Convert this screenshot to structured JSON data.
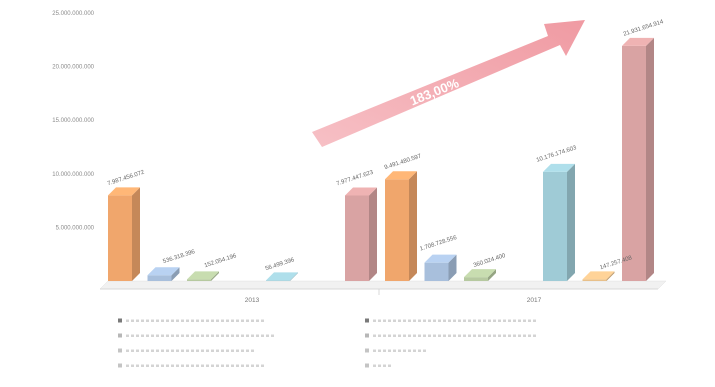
{
  "chart_data": {
    "type": "bar",
    "title": "",
    "xlabel": "",
    "ylabel": "",
    "ylim": [
      0,
      25000000000
    ],
    "yticks": [
      {
        "value": 5000000000,
        "label": "5.000.000.000"
      },
      {
        "value": 10000000000,
        "label": "10.000.000.000"
      },
      {
        "value": 15000000000,
        "label": "15.000.000.000"
      },
      {
        "value": 20000000000,
        "label": "20.000.000.000"
      },
      {
        "value": 25000000000,
        "label": "25.000.000.000"
      }
    ],
    "categories": [
      "2013",
      "2017"
    ],
    "grid": false,
    "legend_position": "bottom",
    "series": [
      {
        "name": "",
        "color": "#f0a66c",
        "values": [
          7987456072,
          9491480597
        ],
        "labels": [
          "7.987.456.072",
          "9.491.480.597"
        ]
      },
      {
        "name": "",
        "color": "#a8bfdc",
        "values": [
          536318396,
          1708728556
        ],
        "labels": [
          "536.318.396",
          "1.708.728.556"
        ]
      },
      {
        "name": "",
        "color": "#b6c9a0",
        "values": [
          152054196,
          360024400
        ],
        "labels": [
          "152.054.196",
          "360.024.400"
        ]
      },
      {
        "name": "",
        "color": "#c5b3d4",
        "values": [
          0,
          0
        ],
        "labels": [
          "",
          ""
        ]
      },
      {
        "name": "",
        "color": "#9fcbd6",
        "values": [
          56499396,
          10176174603
        ],
        "labels": [
          "56.499.396",
          "10.176.174.603"
        ]
      },
      {
        "name": "",
        "color": "#e8c08a",
        "values": [
          0,
          147257408
        ],
        "labels": [
          "",
          "147.257.408"
        ]
      },
      {
        "name": "",
        "color": "#d9a3a3",
        "values": [
          7977447623,
          21931654914
        ],
        "labels": [
          "7.977.447.623",
          "21.931.654.914"
        ]
      }
    ],
    "legend_colors": [
      "#7a7a7a",
      "#7a7a7a",
      "#b7b7b7",
      "#b7b7b7",
      "#c4c4c4",
      "#c4c4c4",
      "#c4c4c4",
      "#c4c4c4"
    ],
    "annotation": {
      "text": "183,00%",
      "color": "#f2a6ac"
    }
  }
}
